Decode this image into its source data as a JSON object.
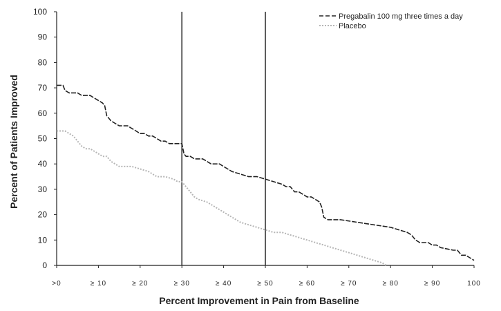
{
  "chart_data": {
    "type": "line",
    "xlabel": "Percent Improvement in Pain from Baseline",
    "ylabel": "Percent of Patients Improved",
    "xlim": [
      0,
      100
    ],
    "ylim": [
      0,
      100
    ],
    "yticks": [
      0,
      10,
      20,
      30,
      40,
      50,
      60,
      70,
      80,
      90,
      100
    ],
    "xticks": [
      {
        "x": 0,
        "label": ">0"
      },
      {
        "x": 10,
        "label": "≥ 10"
      },
      {
        "x": 20,
        "label": "≥ 20"
      },
      {
        "x": 30,
        "label": "≥ 30"
      },
      {
        "x": 40,
        "label": "≥ 40"
      },
      {
        "x": 50,
        "label": "≥ 50"
      },
      {
        "x": 60,
        "label": "≥ 60"
      },
      {
        "x": 70,
        "label": "≥ 70"
      },
      {
        "x": 80,
        "label": "≥ 80"
      },
      {
        "x": 90,
        "label": "≥ 90"
      },
      {
        "x": 100,
        "label": "100"
      }
    ],
    "reference_lines_x": [
      30,
      50
    ],
    "grid": false,
    "legend_position": "top-right",
    "series": [
      {
        "name": "Pregabalin 100 mg three times a day",
        "style": "dashed",
        "color": "#222222",
        "x": [
          0,
          1.5,
          2,
          3,
          4,
          5,
          6,
          7,
          8,
          9,
          10,
          11,
          11.5,
          12,
          12.5,
          13,
          14,
          15,
          16,
          17,
          18,
          19,
          20,
          21,
          22,
          23,
          24,
          25,
          26,
          27,
          28,
          29,
          30,
          30.5,
          31,
          32,
          33,
          34,
          35,
          36,
          37,
          38,
          39,
          40,
          41,
          42,
          44,
          46,
          48,
          50,
          52,
          54,
          55,
          56,
          57,
          58,
          59,
          60,
          61,
          62,
          63,
          63.5,
          64,
          65,
          68,
          72,
          76,
          80,
          84,
          85,
          86,
          87,
          88,
          89,
          90,
          91,
          92,
          95,
          96,
          97,
          98,
          99,
          100
        ],
        "y": [
          71,
          71,
          69,
          68,
          68,
          68,
          67,
          67,
          67,
          66,
          65,
          64,
          63,
          59,
          58,
          57,
          56,
          55,
          55,
          55,
          54,
          53,
          52,
          52,
          51,
          51,
          50,
          49,
          49,
          48,
          48,
          48,
          48,
          44,
          43,
          43,
          42,
          42,
          42,
          41,
          40,
          40,
          40,
          39,
          38,
          37,
          36,
          35,
          35,
          34,
          33,
          32,
          31,
          31,
          29,
          29,
          28,
          27,
          27,
          26,
          25,
          23,
          19,
          18,
          18,
          17,
          16,
          15,
          13,
          12,
          10,
          9,
          9,
          9,
          8,
          8,
          7,
          6,
          6,
          4,
          4,
          3,
          2
        ]
      },
      {
        "name": "Placebo",
        "style": "dotted",
        "color": "#b5b5b5",
        "x": [
          0,
          2,
          3,
          4,
          5,
          6,
          7,
          8,
          9,
          10,
          11,
          12,
          13,
          14,
          15,
          16,
          18,
          20,
          22,
          24,
          26,
          28,
          29,
          30,
          31,
          32,
          33,
          34,
          36,
          38,
          40,
          42,
          44,
          46,
          48,
          50,
          52,
          54,
          56,
          58,
          60,
          62,
          64,
          66,
          68,
          70,
          72,
          74,
          76,
          78,
          79
        ],
        "y": [
          53,
          53,
          52,
          51,
          49,
          47,
          46,
          46,
          45,
          44,
          43,
          43,
          41,
          40,
          39,
          39,
          39,
          38,
          37,
          35,
          35,
          34,
          33,
          33,
          31,
          29,
          27,
          26,
          25,
          23,
          21,
          19,
          17,
          16,
          15,
          14,
          13,
          13,
          12,
          11,
          10,
          9,
          8,
          7,
          6,
          5,
          4,
          3,
          2,
          1,
          0
        ]
      }
    ]
  }
}
